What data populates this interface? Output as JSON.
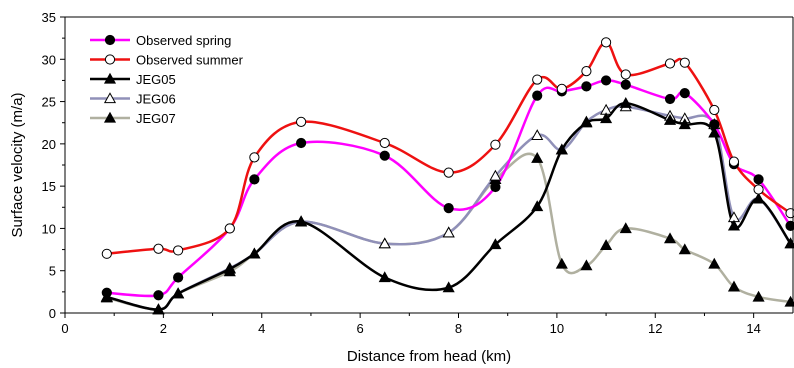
{
  "chart_data": {
    "type": "line",
    "xlabel": "Distance from head (km)",
    "ylabel": "Surface velocity (m/a)",
    "xlim": [
      0,
      14.8
    ],
    "ylim": [
      0,
      35
    ],
    "xticks": [
      0,
      2,
      4,
      6,
      8,
      10,
      12,
      14
    ],
    "yticks": [
      0,
      5,
      10,
      15,
      20,
      25,
      30,
      35
    ],
    "grid": false,
    "legend_position": "top-left",
    "series": [
      {
        "name": "Observed spring",
        "color": "#ff00ff",
        "marker": "circle-filled",
        "x": [
          0.85,
          1.9,
          2.3,
          3.35,
          3.85,
          4.8,
          6.5,
          7.8,
          8.75,
          9.6,
          10.1,
          10.6,
          11.0,
          11.4,
          12.3,
          12.6,
          13.2,
          13.6,
          14.1,
          14.75
        ],
        "y": [
          2.4,
          2.1,
          4.2,
          10.0,
          15.8,
          20.1,
          18.6,
          12.4,
          14.9,
          25.7,
          26.2,
          26.8,
          27.5,
          27.0,
          25.3,
          26.0,
          22.3,
          17.6,
          15.8,
          10.3
        ]
      },
      {
        "name": "Observed summer",
        "color": "#ee1111",
        "marker": "circle-open",
        "x": [
          0.85,
          1.9,
          2.3,
          3.35,
          3.85,
          4.8,
          6.5,
          7.8,
          8.75,
          9.6,
          10.1,
          10.6,
          11.0,
          11.4,
          12.3,
          12.6,
          13.2,
          13.6,
          14.1,
          14.75
        ],
        "y": [
          7.0,
          7.6,
          7.4,
          10.0,
          18.4,
          22.6,
          20.1,
          16.6,
          19.9,
          27.6,
          26.5,
          28.6,
          32.0,
          28.2,
          29.5,
          29.6,
          24.0,
          17.9,
          14.6,
          11.8
        ]
      },
      {
        "name": "JEG05",
        "color": "#000000",
        "marker": "triangle-filled",
        "x": [
          0.85,
          1.9,
          2.3,
          3.35,
          3.85,
          4.8,
          6.5,
          7.8,
          8.75,
          9.6,
          10.1,
          10.6,
          11.0,
          11.4,
          12.3,
          12.6,
          13.2,
          13.6,
          14.1,
          14.75
        ],
        "y": [
          1.9,
          0.4,
          2.3,
          5.2,
          7.0,
          10.8,
          4.2,
          3.0,
          8.1,
          12.6,
          19.3,
          22.5,
          23.0,
          24.8,
          22.8,
          22.3,
          21.3,
          10.3,
          13.5,
          8.2
        ]
      },
      {
        "name": "JEG06",
        "color": "#9090b8",
        "marker": "triangle-open",
        "x": [
          0.85,
          1.9,
          2.3,
          3.35,
          3.85,
          4.8,
          6.5,
          7.8,
          8.75,
          9.6,
          10.1,
          10.6,
          11.0,
          11.4,
          12.3,
          12.6,
          13.2,
          13.6,
          14.1,
          14.75
        ],
        "y": [
          1.9,
          0.4,
          2.3,
          5.3,
          7.0,
          10.8,
          8.2,
          9.5,
          16.2,
          21.0,
          19.3,
          22.6,
          24.0,
          24.4,
          23.3,
          23.0,
          22.3,
          11.3,
          13.5,
          8.2
        ]
      },
      {
        "name": "JEG07",
        "color": "#b0b0a0",
        "marker": "triangle-filled",
        "x": [
          0.85,
          1.9,
          2.3,
          3.35,
          3.85,
          4.8,
          6.5,
          7.8,
          8.75,
          9.6,
          10.1,
          10.6,
          11.0,
          11.4,
          12.3,
          12.6,
          13.2,
          13.6,
          14.1,
          14.75
        ],
        "y": [
          1.8,
          0.4,
          2.3,
          4.9,
          7.0,
          10.8,
          8.2,
          9.5,
          15.8,
          18.3,
          5.8,
          5.6,
          8.0,
          10.0,
          8.8,
          7.5,
          5.8,
          3.1,
          1.9,
          1.3
        ]
      }
    ]
  }
}
